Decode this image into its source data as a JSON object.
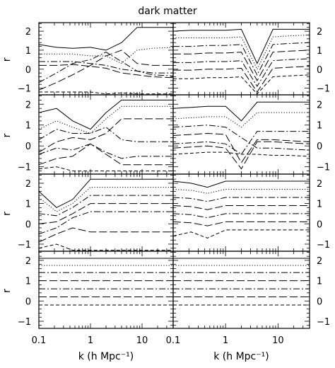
{
  "figure": {
    "title": "dark matter"
  },
  "chart_data": {
    "type": "line",
    "title": "dark matter",
    "xlabel": "k (h Mpc⁻¹)",
    "ylabel": "r",
    "x_scale": "log",
    "xlim": [
      0.1,
      40
    ],
    "ylim": [
      -1.35,
      2.45
    ],
    "x_ticks": [
      0.1,
      1,
      10
    ],
    "x_tick_labels": [
      "0.1",
      "1",
      "10",
      "0.1",
      "1",
      "10"
    ],
    "y_ticks": [
      -1,
      0,
      1,
      2
    ],
    "y_tick_labels": [
      "−1",
      "0",
      "1",
      "2"
    ],
    "grid": false,
    "x": [
      0.1,
      0.22,
      0.45,
      1.0,
      2.0,
      4.0,
      8.0,
      16.0,
      40.0
    ],
    "panels": [
      {
        "row": 0,
        "col": 0,
        "series": [
          {
            "style": "solid",
            "values": [
              1.3,
              1.15,
              1.1,
              1.15,
              1.0,
              1.4,
              2.2,
              2.2,
              2.2
            ]
          },
          {
            "style": "dotted",
            "values": [
              0.8,
              0.8,
              0.8,
              0.7,
              0.7,
              0.3,
              1.0,
              1.1,
              1.15
            ]
          },
          {
            "style": "dashdot",
            "values": [
              0.4,
              0.4,
              0.4,
              0.3,
              0.2,
              0.0,
              -0.1,
              -0.3,
              -0.35
            ]
          },
          {
            "style": "longdash",
            "values": [
              0.2,
              0.2,
              0.25,
              0.15,
              0.05,
              -0.2,
              -0.3,
              -0.4,
              -0.45
            ]
          },
          {
            "style": "dashdot",
            "values": [
              -0.7,
              -0.2,
              0.3,
              0.5,
              0.9,
              0.4,
              -0.1,
              -0.2,
              -0.2
            ]
          },
          {
            "style": "longdash",
            "values": [
              -1.1,
              -0.7,
              -0.3,
              0.2,
              0.7,
              1.0,
              0.3,
              0.2,
              0.2
            ]
          },
          {
            "style": "dashed",
            "values": [
              -1.2,
              -1.2,
              -1.2,
              -1.2,
              -1.3,
              -1.25,
              -1.3,
              -1.3,
              -1.3
            ]
          }
        ]
      },
      {
        "row": 0,
        "col": 1,
        "series": [
          {
            "style": "solid",
            "values": [
              2.0,
              2.05,
              2.05,
              2.05,
              2.1,
              0.3,
              2.1,
              2.1,
              2.1
            ]
          },
          {
            "style": "dotted",
            "values": [
              1.65,
              1.65,
              1.65,
              1.65,
              1.7,
              0.0,
              1.7,
              1.75,
              1.8
            ]
          },
          {
            "style": "dashdot",
            "values": [
              1.2,
              1.2,
              1.25,
              1.25,
              1.3,
              -0.3,
              1.3,
              1.35,
              1.4
            ]
          },
          {
            "style": "longdash",
            "values": [
              0.8,
              0.8,
              0.85,
              0.85,
              0.9,
              -0.6,
              0.9,
              0.95,
              1.0
            ]
          },
          {
            "style": "dashdot",
            "values": [
              0.35,
              0.35,
              0.4,
              0.4,
              0.45,
              -0.9,
              0.45,
              0.5,
              0.55
            ]
          },
          {
            "style": "longdash",
            "values": [
              -0.05,
              -0.05,
              0.0,
              0.0,
              0.05,
              -1.2,
              0.05,
              0.1,
              0.15
            ]
          },
          {
            "style": "dashed",
            "values": [
              -0.5,
              -0.5,
              -0.45,
              -0.45,
              -0.4,
              -1.3,
              -0.4,
              -0.35,
              -0.3
            ]
          }
        ]
      },
      {
        "row": 1,
        "col": 0,
        "series": [
          {
            "style": "solid",
            "values": [
              1.6,
              1.8,
              1.2,
              0.8,
              1.6,
              2.2,
              2.2,
              2.2,
              2.2
            ]
          },
          {
            "style": "dotted",
            "values": [
              0.8,
              1.2,
              0.9,
              0.6,
              1.3,
              1.9,
              1.9,
              1.9,
              1.9
            ]
          },
          {
            "style": "dashdot",
            "values": [
              0.3,
              0.8,
              0.6,
              0.6,
              0.9,
              0.3,
              0.2,
              0.2,
              0.2
            ]
          },
          {
            "style": "longdash",
            "values": [
              -0.3,
              0.2,
              0.4,
              0.3,
              0.6,
              1.3,
              1.3,
              1.3,
              1.3
            ]
          },
          {
            "style": "dashdot",
            "values": [
              -0.4,
              -0.1,
              -0.2,
              0.1,
              -0.3,
              -0.6,
              -0.5,
              -0.5,
              -0.5
            ]
          },
          {
            "style": "longdash",
            "values": [
              -0.9,
              -0.6,
              -0.5,
              0.1,
              -0.4,
              -0.9,
              -0.9,
              -0.9,
              -0.9
            ]
          },
          {
            "style": "dashed",
            "values": [
              -1.1,
              -1.0,
              -1.2,
              -1.2,
              -1.2,
              -1.2,
              -1.2,
              -1.2,
              -1.2
            ]
          }
        ]
      },
      {
        "row": 1,
        "col": 1,
        "series": [
          {
            "style": "solid",
            "values": [
              1.8,
              1.85,
              1.9,
              1.9,
              1.2,
              2.1,
              2.1,
              2.1,
              2.1
            ]
          },
          {
            "style": "dotted",
            "values": [
              1.3,
              1.35,
              1.4,
              1.4,
              0.9,
              1.6,
              1.6,
              1.6,
              1.6
            ]
          },
          {
            "style": "dashdot",
            "values": [
              0.9,
              0.95,
              1.0,
              0.9,
              0.4,
              -0.1,
              -0.1,
              -0.15,
              -0.2
            ]
          },
          {
            "style": "longdash",
            "values": [
              0.5,
              0.55,
              0.6,
              0.55,
              -0.8,
              0.3,
              0.3,
              0.25,
              0.2
            ]
          },
          {
            "style": "dashdot",
            "values": [
              0.1,
              0.15,
              0.2,
              0.1,
              -0.4,
              0.7,
              0.7,
              0.7,
              0.7
            ]
          },
          {
            "style": "longdash",
            "values": [
              -0.1,
              -0.05,
              0.0,
              -0.1,
              -1.1,
              0.2,
              0.2,
              0.15,
              0.1
            ]
          },
          {
            "style": "dashed",
            "values": [
              -0.4,
              -0.35,
              -0.3,
              -0.3,
              -0.4,
              -0.4,
              -0.45,
              -0.45,
              -0.5
            ]
          }
        ]
      },
      {
        "row": 2,
        "col": 0,
        "series": [
          {
            "style": "solid",
            "values": [
              1.6,
              0.8,
              1.2,
              2.2,
              2.2,
              2.2,
              2.2,
              2.2,
              2.2
            ]
          },
          {
            "style": "dotted",
            "values": [
              1.3,
              0.6,
              1.0,
              1.8,
              1.8,
              1.8,
              1.8,
              1.8,
              1.8
            ]
          },
          {
            "style": "dashdot",
            "values": [
              0.5,
              0.4,
              0.8,
              1.4,
              1.4,
              1.4,
              1.4,
              1.4,
              1.4
            ]
          },
          {
            "style": "longdash",
            "values": [
              0.0,
              0.1,
              0.5,
              1.0,
              1.0,
              1.0,
              1.0,
              1.0,
              1.0
            ]
          },
          {
            "style": "dashdot",
            "values": [
              -0.5,
              -0.2,
              0.3,
              0.6,
              0.6,
              0.6,
              0.6,
              0.6,
              0.6
            ]
          },
          {
            "style": "longdash",
            "values": [
              -0.9,
              -0.5,
              -0.2,
              -0.4,
              -0.4,
              -0.4,
              -0.4,
              -0.4,
              -0.4
            ]
          },
          {
            "style": "dashed",
            "values": [
              -1.2,
              -1.0,
              -1.3,
              -1.3,
              -1.3,
              -1.3,
              -1.3,
              -1.3,
              -1.3
            ]
          }
        ]
      },
      {
        "row": 2,
        "col": 1,
        "series": [
          {
            "style": "solid",
            "values": [
              2.1,
              2.0,
              1.8,
              2.1,
              2.1,
              2.1,
              2.1,
              2.1,
              2.1
            ]
          },
          {
            "style": "dotted",
            "values": [
              1.7,
              1.65,
              1.5,
              1.7,
              1.7,
              1.7,
              1.7,
              1.7,
              1.7
            ]
          },
          {
            "style": "dashdot",
            "values": [
              1.3,
              1.25,
              1.1,
              1.3,
              1.3,
              1.3,
              1.3,
              1.3,
              1.3
            ]
          },
          {
            "style": "longdash",
            "values": [
              0.9,
              0.85,
              0.7,
              0.9,
              0.9,
              0.9,
              0.9,
              0.9,
              0.9
            ]
          },
          {
            "style": "dashdot",
            "values": [
              0.5,
              0.45,
              0.3,
              0.5,
              0.5,
              0.5,
              0.5,
              0.5,
              0.5
            ]
          },
          {
            "style": "longdash",
            "values": [
              0.1,
              0.05,
              -0.1,
              0.1,
              0.1,
              0.1,
              0.1,
              0.1,
              0.1
            ]
          },
          {
            "style": "dashed",
            "values": [
              -0.6,
              -0.4,
              -0.7,
              -0.3,
              -0.3,
              -0.3,
              -0.3,
              -0.3,
              -0.3
            ]
          }
        ]
      },
      {
        "row": 3,
        "col": 0,
        "series": [
          {
            "style": "solid",
            "values": [
              2.1,
              2.1,
              2.1,
              2.1,
              2.1,
              2.1,
              2.1,
              2.1,
              2.1
            ]
          },
          {
            "style": "dotted",
            "values": [
              1.75,
              1.75,
              1.75,
              1.75,
              1.75,
              1.75,
              1.75,
              1.75,
              1.75
            ]
          },
          {
            "style": "dashdot",
            "values": [
              1.4,
              1.4,
              1.4,
              1.4,
              1.4,
              1.4,
              1.4,
              1.4,
              1.4
            ]
          },
          {
            "style": "longdash",
            "values": [
              1.0,
              1.0,
              1.0,
              1.0,
              1.0,
              1.0,
              1.0,
              1.0,
              1.0
            ]
          },
          {
            "style": "dashdot",
            "values": [
              0.6,
              0.6,
              0.6,
              0.6,
              0.6,
              0.6,
              0.6,
              0.6,
              0.6
            ]
          },
          {
            "style": "longdash",
            "values": [
              0.2,
              0.2,
              0.2,
              0.2,
              0.2,
              0.2,
              0.2,
              0.2,
              0.2
            ]
          },
          {
            "style": "dashed",
            "values": [
              -0.2,
              -0.2,
              -0.2,
              -0.2,
              -0.2,
              -0.2,
              -0.2,
              -0.2,
              -0.2
            ]
          }
        ]
      },
      {
        "row": 3,
        "col": 1,
        "series": [
          {
            "style": "solid",
            "values": [
              2.1,
              2.1,
              2.1,
              2.1,
              2.1,
              2.1,
              2.1,
              2.1,
              2.1
            ]
          },
          {
            "style": "dotted",
            "values": [
              1.75,
              1.75,
              1.75,
              1.75,
              1.75,
              1.75,
              1.75,
              1.75,
              1.75
            ]
          },
          {
            "style": "dashdot",
            "values": [
              1.4,
              1.4,
              1.4,
              1.4,
              1.4,
              1.4,
              1.4,
              1.4,
              1.4
            ]
          },
          {
            "style": "longdash",
            "values": [
              1.0,
              1.0,
              1.0,
              1.0,
              1.0,
              1.0,
              1.0,
              1.0,
              1.0
            ]
          },
          {
            "style": "dashdot",
            "values": [
              0.6,
              0.6,
              0.6,
              0.6,
              0.6,
              0.6,
              0.6,
              0.6,
              0.6
            ]
          },
          {
            "style": "longdash",
            "values": [
              0.2,
              0.2,
              0.2,
              0.2,
              0.2,
              0.2,
              0.2,
              0.2,
              0.2
            ]
          },
          {
            "style": "dashed",
            "values": [
              -0.2,
              -0.2,
              -0.2,
              -0.2,
              -0.2,
              -0.2,
              -0.2,
              -0.2,
              -0.2
            ]
          }
        ]
      }
    ]
  }
}
